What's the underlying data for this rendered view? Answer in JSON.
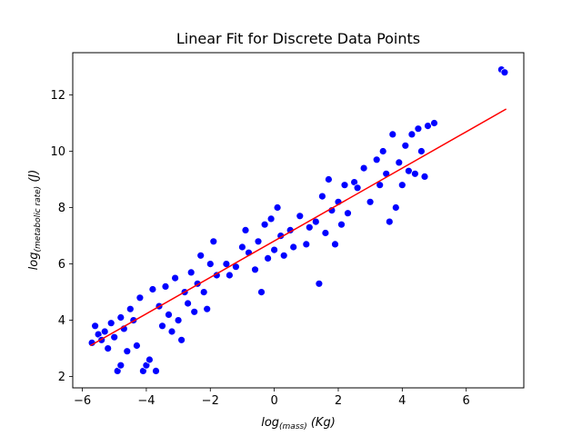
{
  "chart_data": {
    "type": "scatter",
    "title": "Linear Fit for Discrete Data Points",
    "xlabel": {
      "base": "log",
      "sub": "(mass)",
      "unit": " (Kg)"
    },
    "ylabel": {
      "base": "log",
      "sub": "(metabolic rate)",
      "unit": " (J)"
    },
    "xlim": [
      -6.3,
      7.8
    ],
    "ylim": [
      1.6,
      13.5
    ],
    "xticks": [
      -6,
      -4,
      -2,
      0,
      2,
      4,
      6
    ],
    "yticks": [
      2,
      4,
      6,
      8,
      10,
      12
    ],
    "grid": false,
    "legend": "none",
    "colors": {
      "points": "#0000ff",
      "point_edge": "#ffffff",
      "fit_line": "#ff0000"
    },
    "series": [
      {
        "kind": "points",
        "points": [
          [
            -5.7,
            3.2
          ],
          [
            -5.6,
            3.8
          ],
          [
            -5.5,
            3.5
          ],
          [
            -5.4,
            3.3
          ],
          [
            -5.3,
            3.6
          ],
          [
            -5.2,
            3.0
          ],
          [
            -5.1,
            3.9
          ],
          [
            -5.0,
            3.4
          ],
          [
            -4.9,
            2.2
          ],
          [
            -4.8,
            2.4
          ],
          [
            -4.8,
            4.1
          ],
          [
            -4.7,
            3.7
          ],
          [
            -4.6,
            2.9
          ],
          [
            -4.5,
            4.4
          ],
          [
            -4.4,
            4.0
          ],
          [
            -4.3,
            3.1
          ],
          [
            -4.2,
            4.8
          ],
          [
            -4.1,
            2.2
          ],
          [
            -4.0,
            2.4
          ],
          [
            -3.9,
            2.6
          ],
          [
            -3.8,
            5.1
          ],
          [
            -3.7,
            2.2
          ],
          [
            -3.6,
            4.5
          ],
          [
            -3.5,
            3.8
          ],
          [
            -3.4,
            5.2
          ],
          [
            -3.3,
            4.2
          ],
          [
            -3.2,
            3.6
          ],
          [
            -3.1,
            5.5
          ],
          [
            -3.0,
            4.0
          ],
          [
            -2.9,
            3.3
          ],
          [
            -2.8,
            5.0
          ],
          [
            -2.7,
            4.6
          ],
          [
            -2.6,
            5.7
          ],
          [
            -2.5,
            4.3
          ],
          [
            -2.4,
            5.3
          ],
          [
            -2.3,
            6.3
          ],
          [
            -2.2,
            5.0
          ],
          [
            -2.1,
            4.4
          ],
          [
            -2.0,
            6.0
          ],
          [
            -1.9,
            6.8
          ],
          [
            -1.8,
            5.6
          ],
          [
            -1.5,
            6.0
          ],
          [
            -1.4,
            5.6
          ],
          [
            -1.2,
            5.9
          ],
          [
            -1.0,
            6.6
          ],
          [
            -0.9,
            7.2
          ],
          [
            -0.8,
            6.4
          ],
          [
            -0.6,
            5.8
          ],
          [
            -0.5,
            6.8
          ],
          [
            -0.4,
            5.0
          ],
          [
            -0.3,
            7.4
          ],
          [
            -0.2,
            6.2
          ],
          [
            -0.1,
            7.6
          ],
          [
            0.0,
            6.5
          ],
          [
            0.1,
            8.0
          ],
          [
            0.2,
            7.0
          ],
          [
            0.3,
            6.3
          ],
          [
            0.5,
            7.2
          ],
          [
            0.6,
            6.6
          ],
          [
            0.8,
            7.7
          ],
          [
            1.0,
            6.7
          ],
          [
            1.1,
            7.3
          ],
          [
            1.3,
            7.5
          ],
          [
            1.4,
            5.3
          ],
          [
            1.5,
            8.4
          ],
          [
            1.6,
            7.1
          ],
          [
            1.7,
            9.0
          ],
          [
            1.8,
            7.9
          ],
          [
            1.9,
            6.7
          ],
          [
            2.0,
            8.2
          ],
          [
            2.1,
            7.4
          ],
          [
            2.2,
            8.8
          ],
          [
            2.3,
            7.8
          ],
          [
            2.5,
            8.9
          ],
          [
            2.6,
            8.7
          ],
          [
            2.8,
            9.4
          ],
          [
            3.0,
            8.2
          ],
          [
            3.2,
            9.7
          ],
          [
            3.3,
            8.8
          ],
          [
            3.4,
            10.0
          ],
          [
            3.5,
            9.2
          ],
          [
            3.6,
            7.5
          ],
          [
            3.7,
            10.6
          ],
          [
            3.8,
            8.0
          ],
          [
            3.9,
            9.6
          ],
          [
            4.0,
            8.8
          ],
          [
            4.1,
            10.2
          ],
          [
            4.2,
            9.3
          ],
          [
            4.3,
            10.6
          ],
          [
            4.4,
            9.2
          ],
          [
            4.5,
            10.8
          ],
          [
            4.6,
            10.0
          ],
          [
            4.7,
            9.1
          ],
          [
            4.8,
            10.9
          ],
          [
            5.0,
            11.0
          ],
          [
            7.1,
            12.9
          ],
          [
            7.2,
            12.8
          ]
        ]
      },
      {
        "kind": "fit_line",
        "points": [
          [
            -5.75,
            3.1
          ],
          [
            7.25,
            11.5
          ]
        ]
      }
    ]
  }
}
